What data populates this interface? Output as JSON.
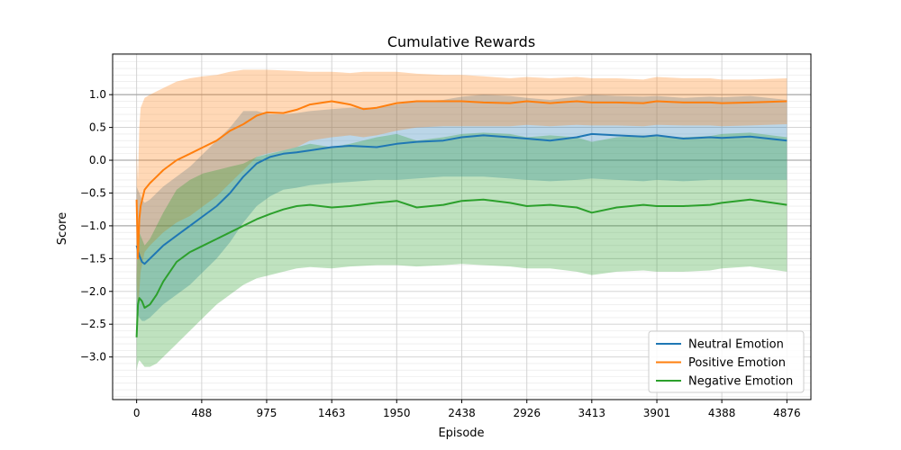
{
  "chart_data": {
    "type": "line",
    "title": "Cumulative Rewards",
    "xlabel": "Episode",
    "ylabel": "Score",
    "xlim": [
      -180,
      5056
    ],
    "ylim": [
      -3.65,
      1.62
    ],
    "x_ticks": [
      0,
      488,
      975,
      1463,
      1950,
      2438,
      2926,
      3413,
      3901,
      4388,
      4876
    ],
    "y_ticks": [
      -3.0,
      -2.5,
      -2.0,
      -1.5,
      -1.0,
      -0.5,
      0.0,
      0.5,
      1.0
    ],
    "y_tick_labels": [
      "−3.0",
      "−2.5",
      "−2.0",
      "−1.5",
      "−1.0",
      "−0.5",
      "0.0",
      "0.5",
      "1.0"
    ],
    "x_tick_labels": [
      "0",
      "488",
      "975",
      "1463",
      "1950",
      "2438",
      "2926",
      "3413",
      "3901",
      "4388",
      "4876"
    ],
    "reference_lines_y": [
      1.0,
      0.0,
      -1.0
    ],
    "grid": true,
    "minor_grid_y_step": 0.1,
    "legend_position": "lower-right",
    "series": [
      {
        "name": "Neutral Emotion",
        "color": "#1f77b4",
        "x": [
          0,
          20,
          40,
          60,
          100,
          150,
          200,
          300,
          400,
          500,
          600,
          700,
          800,
          900,
          1000,
          1100,
          1200,
          1300,
          1463,
          1600,
          1800,
          1950,
          2100,
          2300,
          2438,
          2600,
          2800,
          2926,
          3100,
          3300,
          3413,
          3600,
          3800,
          3901,
          4100,
          4300,
          4388,
          4600,
          4876
        ],
        "values": [
          -1.3,
          -1.45,
          -1.55,
          -1.58,
          -1.5,
          -1.4,
          -1.3,
          -1.15,
          -1.0,
          -0.85,
          -0.7,
          -0.5,
          -0.25,
          -0.05,
          0.05,
          0.1,
          0.12,
          0.15,
          0.2,
          0.22,
          0.2,
          0.25,
          0.28,
          0.3,
          0.35,
          0.38,
          0.35,
          0.33,
          0.3,
          0.35,
          0.4,
          0.38,
          0.36,
          0.38,
          0.33,
          0.35,
          0.34,
          0.36,
          0.3
        ],
        "lower": [
          -2.3,
          -2.4,
          -2.45,
          -2.45,
          -2.4,
          -2.3,
          -2.2,
          -2.05,
          -1.9,
          -1.7,
          -1.5,
          -1.25,
          -0.95,
          -0.7,
          -0.55,
          -0.45,
          -0.42,
          -0.38,
          -0.35,
          -0.33,
          -0.3,
          -0.3,
          -0.28,
          -0.25,
          -0.25,
          -0.25,
          -0.28,
          -0.3,
          -0.32,
          -0.3,
          -0.28,
          -0.3,
          -0.32,
          -0.3,
          -0.32,
          -0.3,
          -0.3,
          -0.3,
          -0.3
        ],
        "upper": [
          -0.4,
          -0.5,
          -0.6,
          -0.65,
          -0.6,
          -0.5,
          -0.4,
          -0.25,
          -0.1,
          0.1,
          0.3,
          0.5,
          0.75,
          0.75,
          0.7,
          0.7,
          0.72,
          0.75,
          0.78,
          0.8,
          0.8,
          0.85,
          0.9,
          0.92,
          0.97,
          1.0,
          0.98,
          0.95,
          0.92,
          0.97,
          1.0,
          0.98,
          0.97,
          0.98,
          0.95,
          0.97,
          0.96,
          0.98,
          0.92
        ]
      },
      {
        "name": "Positive Emotion",
        "color": "#ff7f0e",
        "x": [
          0,
          10,
          20,
          30,
          60,
          100,
          150,
          200,
          300,
          400,
          500,
          600,
          700,
          800,
          900,
          975,
          1100,
          1200,
          1300,
          1463,
          1600,
          1700,
          1800,
          1950,
          2100,
          2300,
          2438,
          2600,
          2800,
          2926,
          3100,
          3300,
          3413,
          3600,
          3800,
          3901,
          4100,
          4300,
          4388,
          4600,
          4876
        ],
        "values": [
          -0.6,
          -1.5,
          -0.9,
          -0.7,
          -0.45,
          -0.35,
          -0.25,
          -0.15,
          0.0,
          0.1,
          0.2,
          0.3,
          0.45,
          0.55,
          0.68,
          0.73,
          0.72,
          0.77,
          0.85,
          0.9,
          0.85,
          0.78,
          0.8,
          0.87,
          0.9,
          0.9,
          0.9,
          0.88,
          0.87,
          0.9,
          0.87,
          0.9,
          0.88,
          0.88,
          0.87,
          0.9,
          0.88,
          0.88,
          0.87,
          0.88,
          0.9
        ],
        "lower": [
          -1.8,
          -2.5,
          -2.0,
          -1.7,
          -1.4,
          -1.3,
          -1.2,
          -1.1,
          -0.95,
          -0.85,
          -0.7,
          -0.55,
          -0.35,
          -0.15,
          0.05,
          0.1,
          0.15,
          0.2,
          0.3,
          0.35,
          0.38,
          0.35,
          0.38,
          0.45,
          0.5,
          0.52,
          0.52,
          0.52,
          0.52,
          0.54,
          0.52,
          0.54,
          0.53,
          0.53,
          0.52,
          0.54,
          0.53,
          0.53,
          0.52,
          0.53,
          0.55
        ],
        "upper": [
          0.2,
          -0.3,
          0.5,
          0.8,
          0.95,
          1.0,
          1.05,
          1.1,
          1.2,
          1.25,
          1.28,
          1.3,
          1.35,
          1.38,
          1.38,
          1.38,
          1.37,
          1.36,
          1.35,
          1.35,
          1.33,
          1.35,
          1.35,
          1.35,
          1.32,
          1.3,
          1.3,
          1.28,
          1.25,
          1.27,
          1.25,
          1.27,
          1.25,
          1.25,
          1.23,
          1.27,
          1.25,
          1.25,
          1.23,
          1.23,
          1.25
        ]
      },
      {
        "name": "Negative Emotion",
        "color": "#2ca02c",
        "x": [
          0,
          10,
          20,
          40,
          60,
          100,
          150,
          200,
          300,
          400,
          500,
          600,
          700,
          800,
          900,
          1000,
          1100,
          1200,
          1300,
          1463,
          1600,
          1800,
          1950,
          2100,
          2300,
          2438,
          2600,
          2800,
          2926,
          3100,
          3300,
          3413,
          3600,
          3800,
          3901,
          4100,
          4300,
          4388,
          4600,
          4876
        ],
        "values": [
          -2.7,
          -2.2,
          -2.1,
          -2.15,
          -2.25,
          -2.2,
          -2.05,
          -1.85,
          -1.55,
          -1.4,
          -1.3,
          -1.2,
          -1.1,
          -1.0,
          -0.9,
          -0.82,
          -0.75,
          -0.7,
          -0.68,
          -0.72,
          -0.7,
          -0.65,
          -0.62,
          -0.72,
          -0.68,
          -0.62,
          -0.6,
          -0.65,
          -0.7,
          -0.68,
          -0.72,
          -0.8,
          -0.72,
          -0.68,
          -0.7,
          -0.7,
          -0.68,
          -0.65,
          -0.6,
          -0.68
        ],
        "lower": [
          -3.2,
          -3.1,
          -3.05,
          -3.1,
          -3.15,
          -3.15,
          -3.1,
          -3.0,
          -2.8,
          -2.6,
          -2.4,
          -2.2,
          -2.05,
          -1.9,
          -1.8,
          -1.75,
          -1.7,
          -1.65,
          -1.63,
          -1.65,
          -1.62,
          -1.6,
          -1.6,
          -1.62,
          -1.6,
          -1.58,
          -1.6,
          -1.62,
          -1.65,
          -1.65,
          -1.7,
          -1.75,
          -1.7,
          -1.68,
          -1.7,
          -1.7,
          -1.68,
          -1.65,
          -1.62,
          -1.7
        ],
        "upper": [
          -1.8,
          -1.2,
          -1.1,
          -1.2,
          -1.3,
          -1.2,
          -1.0,
          -0.8,
          -0.45,
          -0.3,
          -0.2,
          -0.15,
          -0.1,
          -0.05,
          0.05,
          0.1,
          0.15,
          0.2,
          0.25,
          0.2,
          0.25,
          0.35,
          0.4,
          0.3,
          0.35,
          0.4,
          0.42,
          0.4,
          0.35,
          0.38,
          0.35,
          0.28,
          0.35,
          0.38,
          0.36,
          0.35,
          0.37,
          0.4,
          0.42,
          0.35
        ]
      }
    ]
  }
}
